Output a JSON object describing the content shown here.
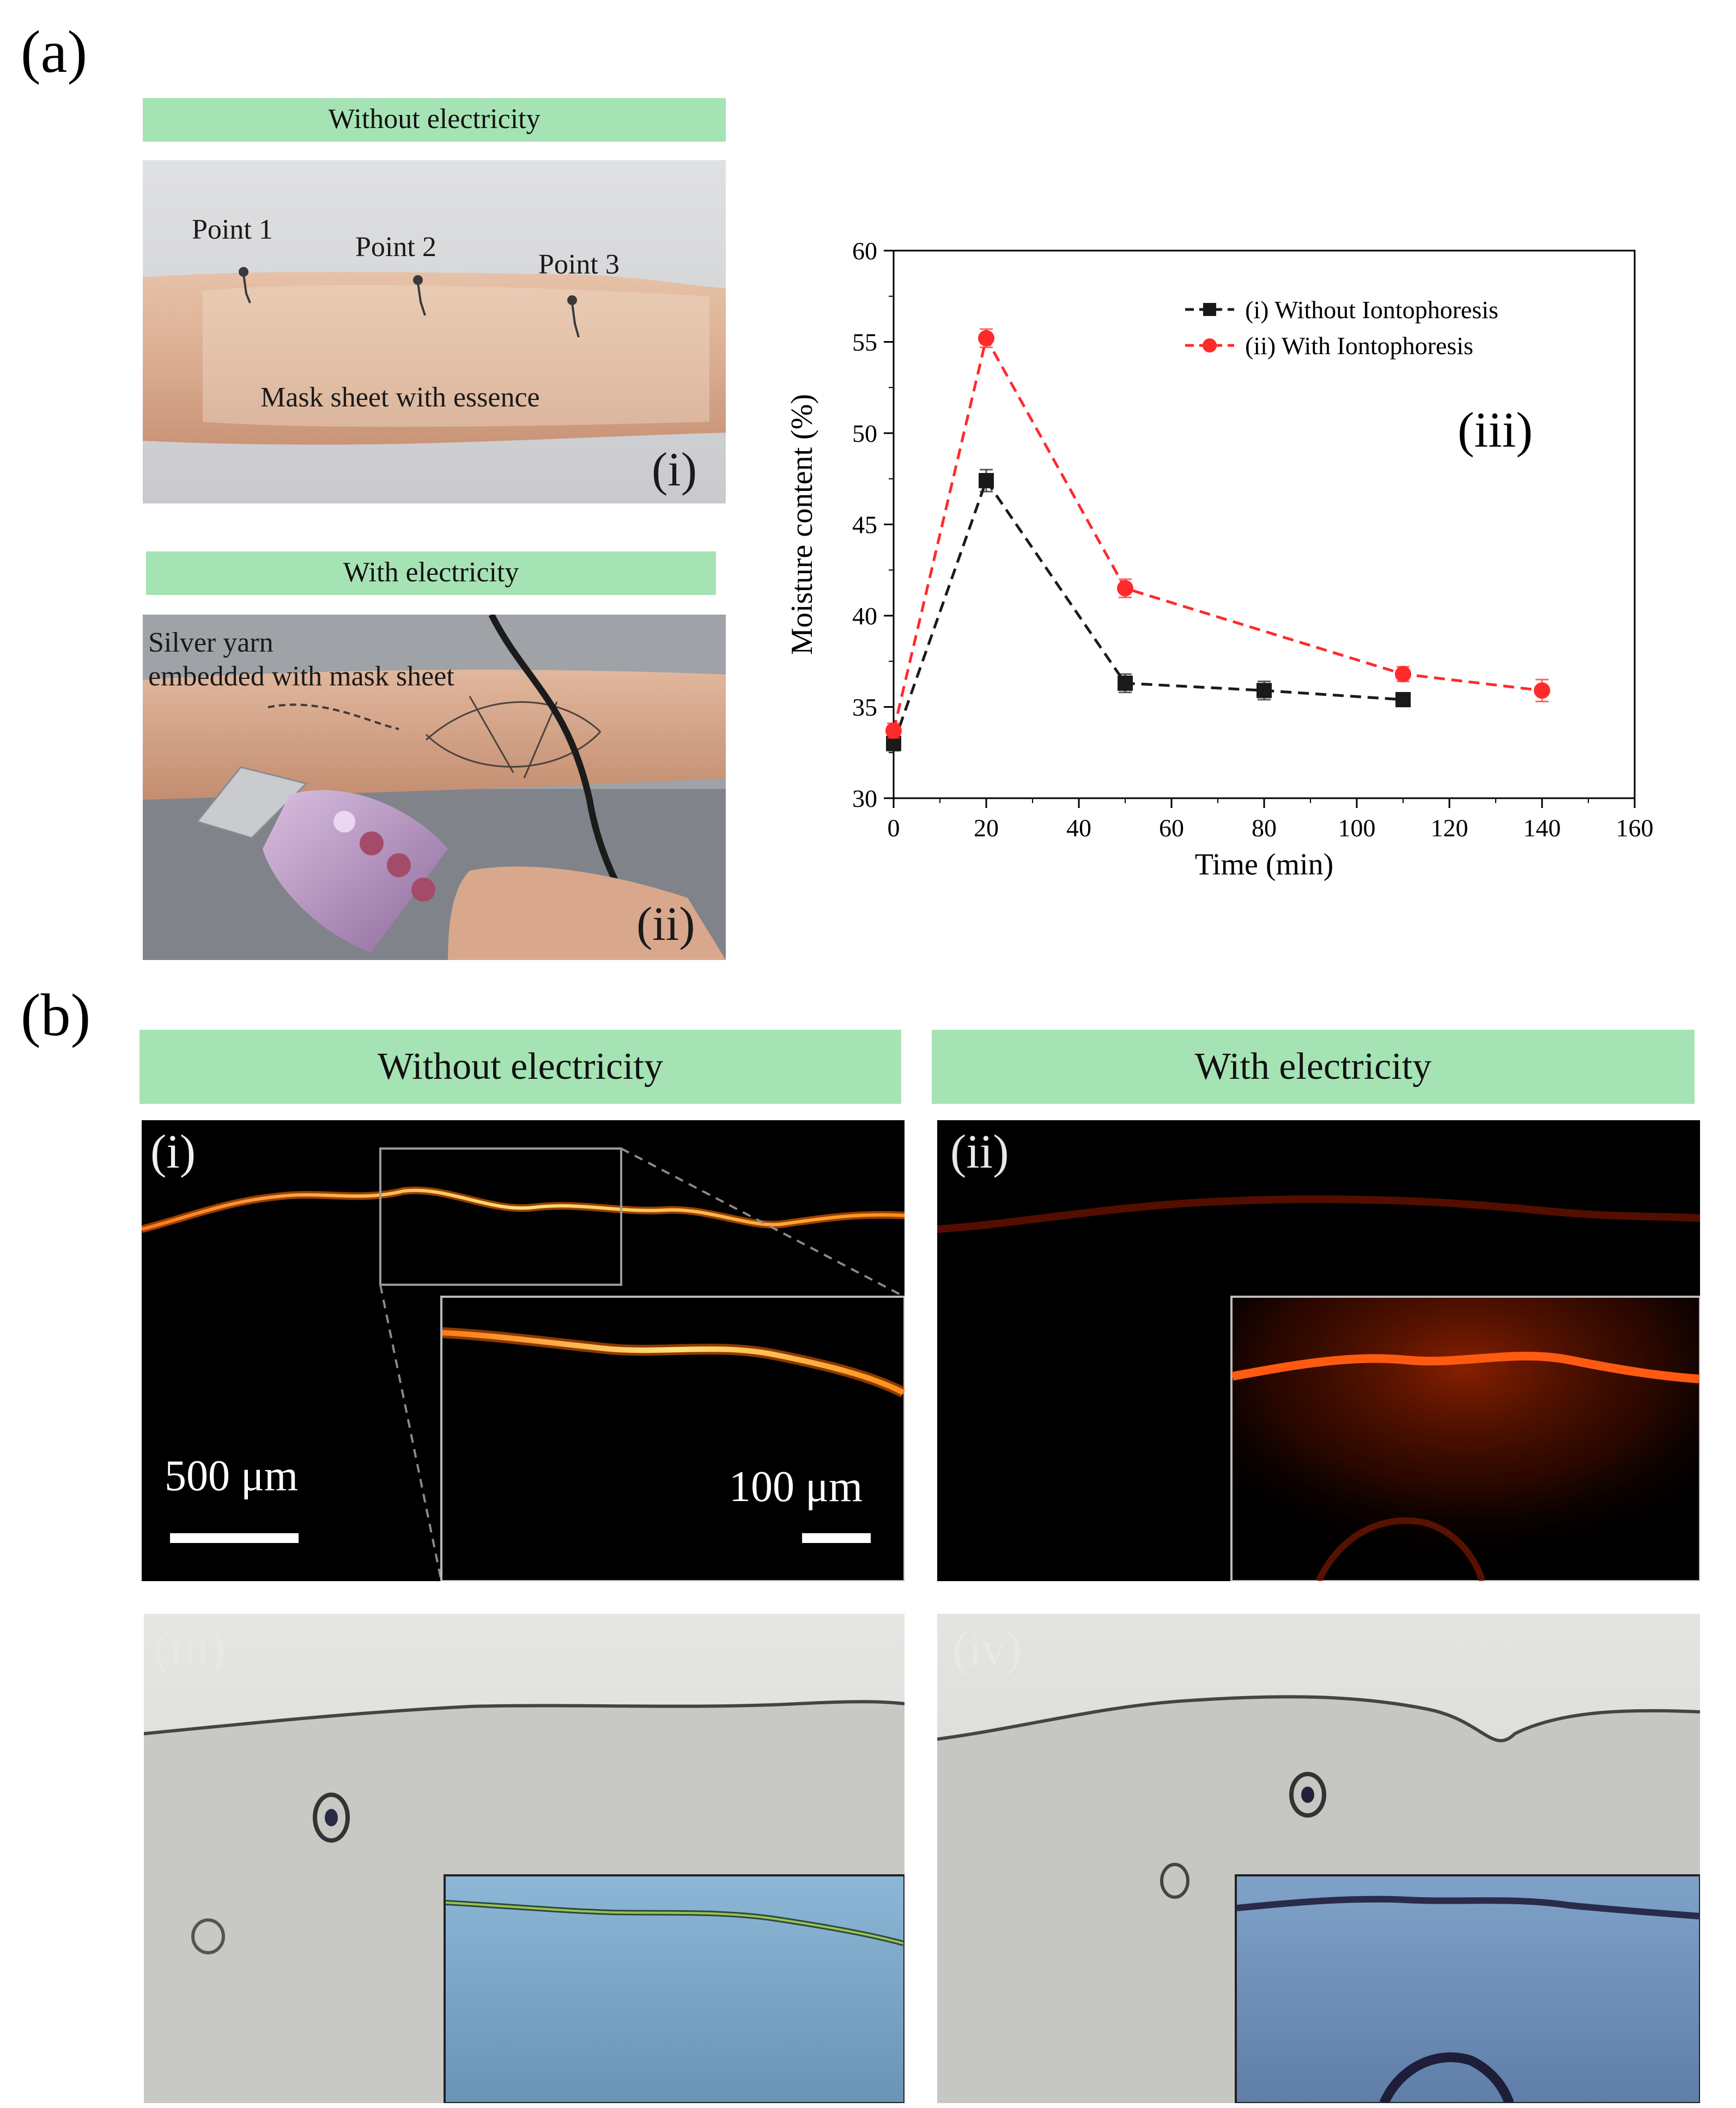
{
  "section_a": {
    "label": "(a)",
    "panel_i": {
      "banner": "Without electricity",
      "tag": "(i)",
      "points": [
        "Point 1",
        "Point 2",
        "Point 3"
      ],
      "caption": "Mask sheet with essence"
    },
    "panel_ii": {
      "banner": "With electricity",
      "tag": "(ii)",
      "caption_line1": "Silver yarn",
      "caption_line2": "embedded with mask sheet"
    }
  },
  "chart_data": {
    "type": "line",
    "panel_tag": "(iii)",
    "xlabel": "Time (min)",
    "ylabel": "Moisture content (%)",
    "xlim": [
      0,
      160
    ],
    "ylim": [
      30,
      60
    ],
    "xticks": [
      0,
      20,
      40,
      60,
      80,
      100,
      120,
      140,
      160
    ],
    "yticks": [
      30,
      35,
      40,
      45,
      50,
      55,
      60
    ],
    "legend_position": "top-right",
    "series": [
      {
        "name": "(i) Without Iontophoresis",
        "legend": "- -(i) Without Iontophoresis",
        "color": "#1a1a1a",
        "marker": "square",
        "x": [
          0,
          20,
          50,
          80,
          110
        ],
        "y": [
          33.0,
          47.4,
          36.3,
          35.9,
          35.4
        ],
        "err": [
          0.4,
          0.6,
          0.5,
          0.5,
          0.3
        ]
      },
      {
        "name": "(ii) With Iontophoresis",
        "legend": "- -(ii) With Iontophoresis",
        "color": "#ff2a2a",
        "marker": "circle",
        "x": [
          0,
          20,
          50,
          110,
          140
        ],
        "y": [
          33.7,
          55.2,
          41.5,
          36.8,
          35.9
        ],
        "err": [
          0.4,
          0.5,
          0.5,
          0.4,
          0.6
        ]
      }
    ]
  },
  "section_b": {
    "label": "(b)",
    "banner_left": "Without electricity",
    "banner_right": "With electricity",
    "panel_i": {
      "tag": "(i)",
      "scale_main": "500 μm",
      "scale_inset": "100 μm"
    },
    "panel_ii": {
      "tag": "(ii)"
    },
    "panel_iii": {
      "tag": "(iii)"
    },
    "panel_iv": {
      "tag": "(iv)"
    }
  },
  "colors": {
    "banner": "#a6e3b4",
    "series_without": "#1a1a1a",
    "series_with": "#ff2a2a"
  }
}
